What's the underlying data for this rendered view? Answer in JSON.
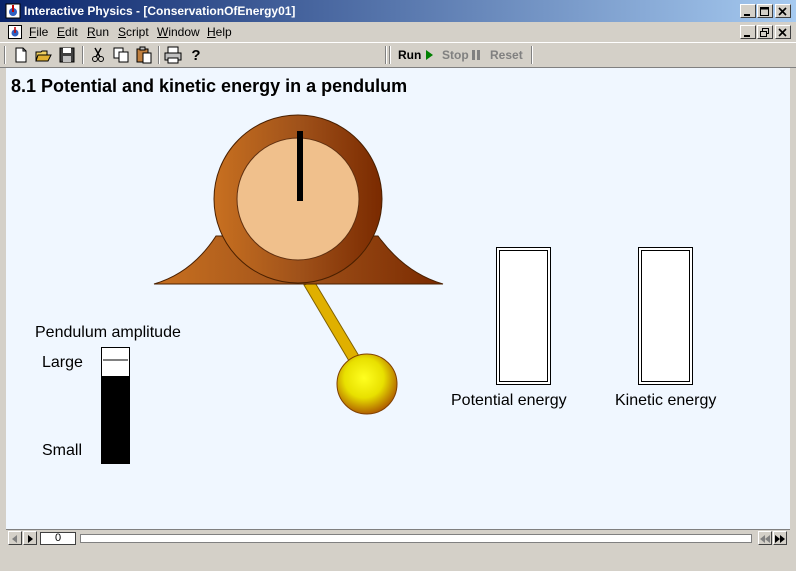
{
  "window": {
    "title": "Interactive Physics - [ConservationOfEnergy01]"
  },
  "menu": {
    "items": [
      "File",
      "Edit",
      "Run",
      "Script",
      "Window",
      "Help"
    ]
  },
  "toolbar": {
    "icons": [
      "new-file-icon",
      "open-folder-icon",
      "save-icon",
      "cut-icon",
      "copy-icon",
      "paste-icon",
      "print-icon",
      "help-icon"
    ],
    "run_label": "Run",
    "stop_label": "Stop",
    "reset_label": "Reset"
  },
  "scene": {
    "title": "8.1 Potential and kinetic energy in a pendulum",
    "amplitude_label": "Pendulum amplitude",
    "large_label": "Large",
    "small_label": "Small",
    "amplitude_level": 0.24,
    "potential_label": "Potential energy",
    "kinetic_label": "Kinetic energy",
    "potential_level": 0,
    "kinetic_level": 0
  },
  "status": {
    "frame": "0"
  },
  "colors": {
    "titlebar_start": "#0a246a",
    "titlebar_end": "#a6caf0",
    "workspace": "#f0f7ff",
    "clock_wood": "#a0521a",
    "clock_face": "#f0c08c",
    "bob": "#ffee00",
    "rod": "#e0b000",
    "run_green": "#008000"
  }
}
